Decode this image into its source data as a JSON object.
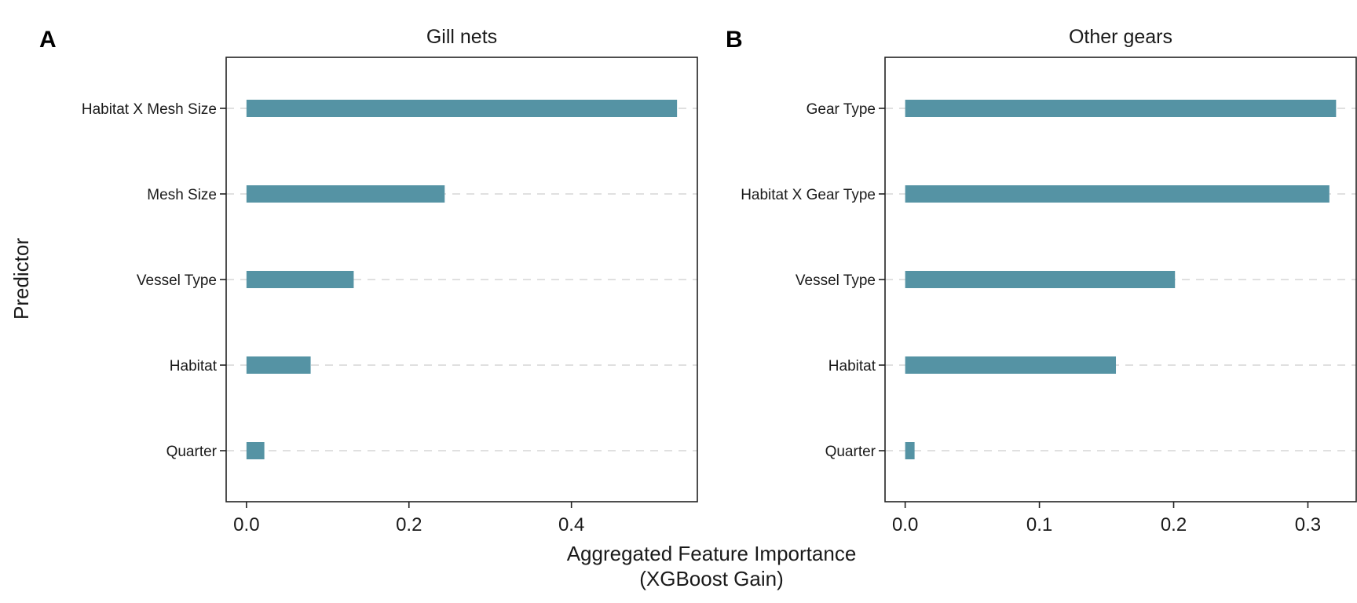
{
  "figure": {
    "xlabel_line1": "Aggregated Feature Importance",
    "xlabel_line2": "(XGBoost Gain)",
    "ylabel": "Predictor",
    "bar_color": "#5593a4"
  },
  "chart_data": [
    {
      "type": "bar",
      "orientation": "horizontal",
      "panel_label": "A",
      "title": "Gill nets",
      "categories": [
        "Habitat X Mesh Size",
        "Mesh Size",
        "Vessel Type",
        "Habitat",
        "Quarter"
      ],
      "values": [
        0.53,
        0.244,
        0.132,
        0.079,
        0.022
      ],
      "xlim": [
        -0.025,
        0.555
      ],
      "xticks": [
        0.0,
        0.2,
        0.4
      ],
      "xtick_labels": [
        "0.0",
        "0.2",
        "0.4"
      ],
      "grid": "horizontal dashed"
    },
    {
      "type": "bar",
      "orientation": "horizontal",
      "panel_label": "B",
      "title": "Other gears",
      "categories": [
        "Gear Type",
        "Habitat X Gear Type",
        "Vessel Type",
        "Habitat",
        "Quarter"
      ],
      "values": [
        0.321,
        0.316,
        0.201,
        0.157,
        0.007
      ],
      "xlim": [
        -0.015,
        0.336
      ],
      "xticks": [
        0.0,
        0.1,
        0.2,
        0.3
      ],
      "xtick_labels": [
        "0.0",
        "0.1",
        "0.2",
        "0.3"
      ],
      "grid": "horizontal dashed"
    }
  ]
}
